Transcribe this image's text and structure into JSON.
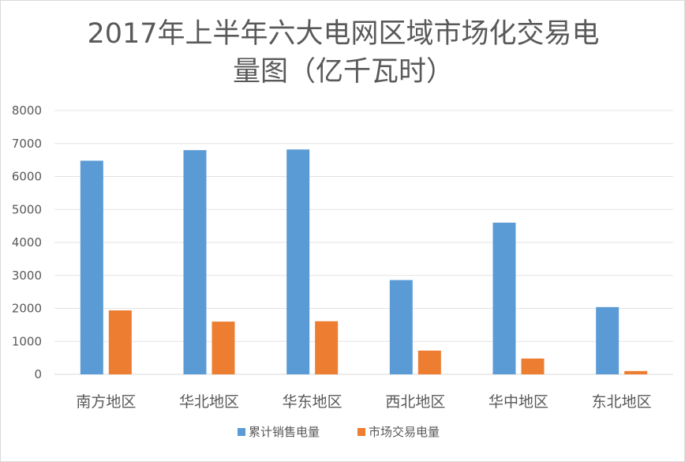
{
  "chart_data": {
    "type": "bar",
    "title_line1": "2017年上半年六大电网区域市场化交易电",
    "title_line2": "量图（亿千瓦时）",
    "categories": [
      "南方地区",
      "华北地区",
      "华东地区",
      "西北地区",
      "华中地区",
      "东北地区"
    ],
    "series": [
      {
        "name": "累计销售电量",
        "color": "#5b9bd5",
        "values": [
          6480,
          6800,
          6820,
          2860,
          4600,
          2040
        ]
      },
      {
        "name": "市场交易电量",
        "color": "#ed7d31",
        "values": [
          1940,
          1600,
          1610,
          720,
          480,
          100
        ]
      }
    ],
    "y_ticks": [
      "0",
      "1000",
      "2000",
      "3000",
      "4000",
      "5000",
      "6000",
      "7000",
      "8000"
    ],
    "ylim": [
      0,
      8000
    ],
    "grid": true,
    "legend_position": "bottom"
  }
}
